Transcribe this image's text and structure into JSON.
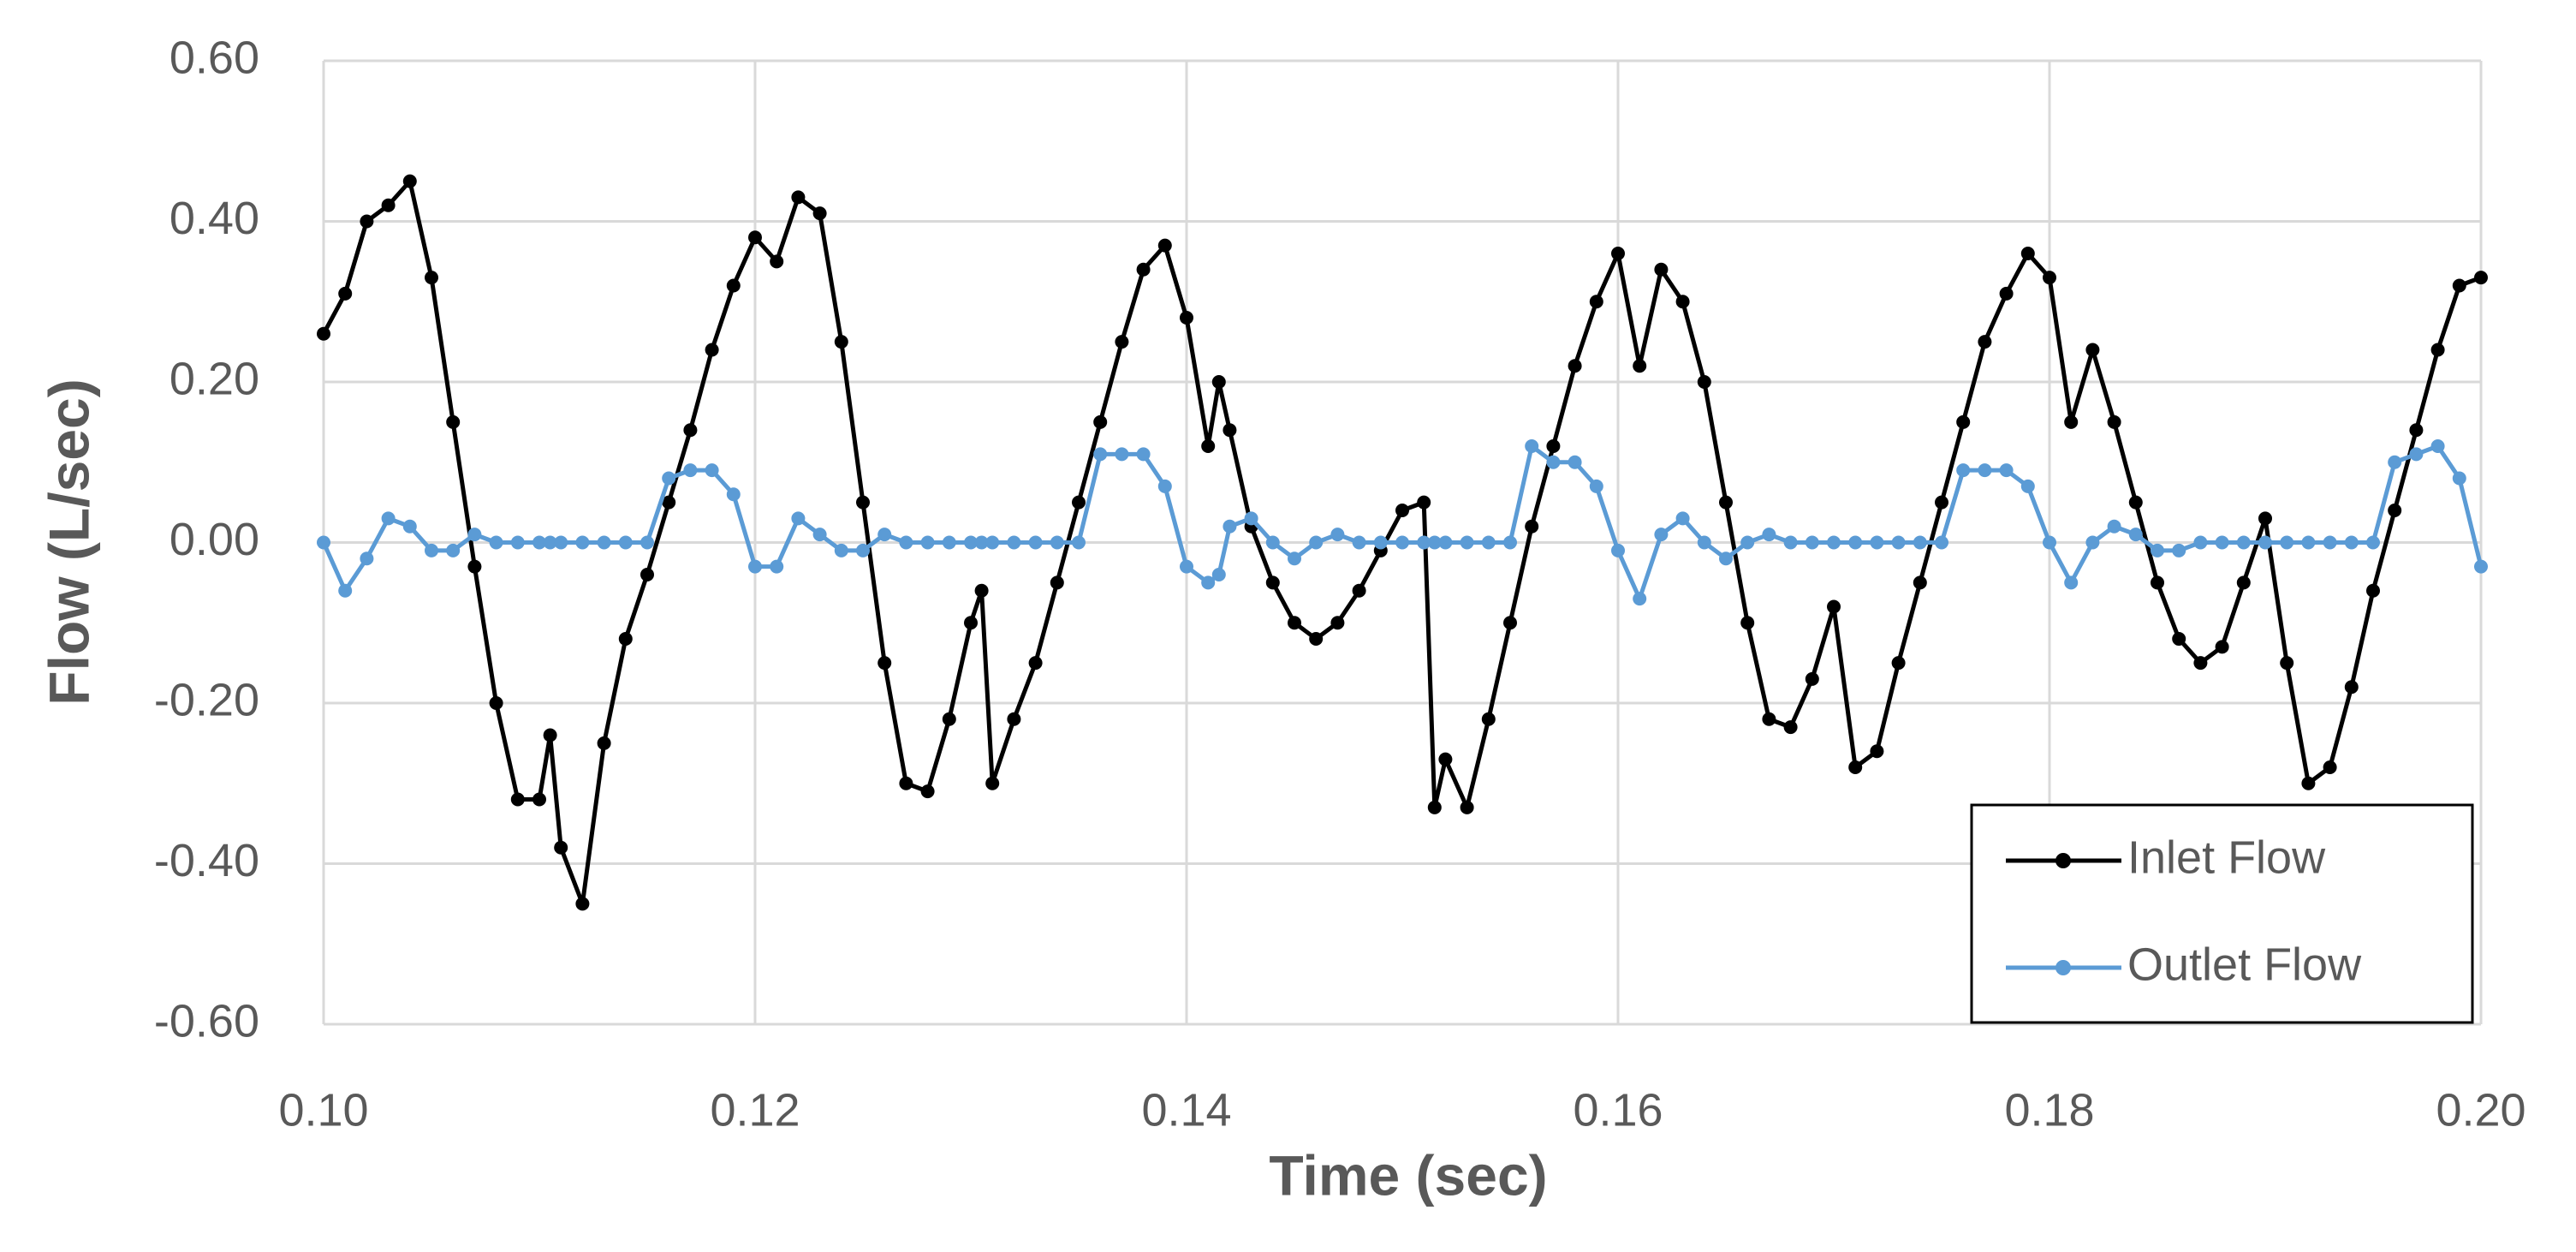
{
  "chart_data": {
    "type": "line",
    "x_label": "Time (sec)",
    "y_label": "Flow (L/sec)",
    "xlim": [
      0.1,
      0.2
    ],
    "ylim": [
      -0.6,
      0.6
    ],
    "xticks": [
      {
        "value": 0.1,
        "label": "0.10"
      },
      {
        "value": 0.12,
        "label": "0.12"
      },
      {
        "value": 0.14,
        "label": "0.14"
      },
      {
        "value": 0.16,
        "label": "0.16"
      },
      {
        "value": 0.18,
        "label": "0.18"
      },
      {
        "value": 0.2,
        "label": "0.20"
      }
    ],
    "yticks": [
      {
        "value": -0.6,
        "label": "-0.60"
      },
      {
        "value": -0.4,
        "label": "-0.40"
      },
      {
        "value": -0.2,
        "label": "-0.20"
      },
      {
        "value": 0,
        "label": "0.00"
      },
      {
        "value": 0.2,
        "label": "0.20"
      },
      {
        "value": 0.4,
        "label": "0.40"
      },
      {
        "value": 0.6,
        "label": "0.60"
      }
    ],
    "grid": true,
    "legend": "lower right",
    "x": [
      0.1,
      0.101,
      0.102,
      0.103,
      0.104,
      0.105,
      0.106,
      0.107,
      0.108,
      0.109,
      0.11,
      0.1105,
      0.111,
      0.112,
      0.113,
      0.114,
      0.115,
      0.116,
      0.117,
      0.118,
      0.119,
      0.12,
      0.121,
      0.122,
      0.123,
      0.124,
      0.125,
      0.126,
      0.127,
      0.128,
      0.129,
      0.13,
      0.1305,
      0.131,
      0.132,
      0.133,
      0.134,
      0.135,
      0.136,
      0.137,
      0.138,
      0.139,
      0.14,
      0.141,
      0.1415,
      0.142,
      0.143,
      0.144,
      0.145,
      0.146,
      0.147,
      0.148,
      0.149,
      0.15,
      0.151,
      0.1515,
      0.152,
      0.153,
      0.154,
      0.155,
      0.156,
      0.157,
      0.158,
      0.159,
      0.16,
      0.161,
      0.162,
      0.163,
      0.164,
      0.165,
      0.166,
      0.167,
      0.168,
      0.169,
      0.17,
      0.171,
      0.172,
      0.173,
      0.174,
      0.175,
      0.176,
      0.177,
      0.178,
      0.179,
      0.18,
      0.181,
      0.182,
      0.183,
      0.184,
      0.185,
      0.186,
      0.187,
      0.188,
      0.189,
      0.19,
      0.191,
      0.192,
      0.193,
      0.194,
      0.195,
      0.196,
      0.197,
      0.198,
      0.199,
      0.2
    ],
    "series": [
      {
        "name": "Inlet Flow",
        "color": "#000000",
        "values": [
          0.26,
          0.31,
          0.4,
          0.42,
          0.45,
          0.33,
          0.15,
          -0.03,
          -0.2,
          -0.32,
          -0.32,
          -0.24,
          -0.38,
          -0.45,
          -0.25,
          -0.12,
          -0.04,
          0.05,
          0.14,
          0.24,
          0.32,
          0.38,
          0.35,
          0.43,
          0.41,
          0.25,
          0.05,
          -0.15,
          -0.3,
          -0.31,
          -0.22,
          -0.1,
          -0.06,
          -0.3,
          -0.22,
          -0.15,
          -0.05,
          0.05,
          0.15,
          0.25,
          0.34,
          0.37,
          0.28,
          0.12,
          0.2,
          0.14,
          0.02,
          -0.05,
          -0.1,
          -0.12,
          -0.1,
          -0.06,
          -0.01,
          0.04,
          0.05,
          -0.33,
          -0.27,
          -0.33,
          -0.22,
          -0.1,
          0.02,
          0.12,
          0.22,
          0.3,
          0.36,
          0.22,
          0.34,
          0.3,
          0.2,
          0.05,
          -0.1,
          -0.22,
          -0.23,
          -0.17,
          -0.08,
          -0.28,
          -0.26,
          -0.15,
          -0.05,
          0.05,
          0.15,
          0.25,
          0.31,
          0.36,
          0.33,
          0.15,
          0.24,
          0.15,
          0.05,
          -0.05,
          -0.12,
          -0.15,
          -0.13,
          -0.05,
          0.03,
          -0.15,
          -0.3,
          -0.28,
          -0.18,
          -0.06,
          0.04,
          0.14,
          0.24,
          0.32,
          0.33
        ]
      },
      {
        "name": "Outlet Flow",
        "color": "#5b9bd5",
        "values": [
          0,
          -0.06,
          -0.02,
          0.03,
          0.02,
          -0.01,
          -0.01,
          0.01,
          0,
          0,
          0,
          0,
          0,
          0,
          0,
          0,
          0,
          0.08,
          0.09,
          0.09,
          0.06,
          -0.03,
          -0.03,
          0.03,
          0.01,
          -0.01,
          -0.01,
          0.01,
          0,
          0,
          0,
          0,
          0,
          0,
          0,
          0,
          0,
          0,
          0.11,
          0.11,
          0.11,
          0.07,
          -0.03,
          -0.05,
          -0.04,
          0.02,
          0.03,
          0,
          -0.02,
          0,
          0.01,
          0,
          0,
          0,
          0,
          0,
          0,
          0,
          0,
          0,
          0.12,
          0.1,
          0.1,
          0.07,
          -0.01,
          -0.07,
          0.01,
          0.03,
          0,
          -0.02,
          0,
          0.01,
          0,
          0,
          0,
          0,
          0,
          0,
          0,
          0,
          0.09,
          0.09,
          0.09,
          0.07,
          0,
          -0.05,
          0,
          0.02,
          0.01,
          -0.01,
          -0.01,
          0,
          0,
          0,
          0,
          0,
          0,
          0,
          0,
          0,
          0.1,
          0.11,
          0.12,
          0.08,
          -0.03
        ]
      }
    ]
  }
}
